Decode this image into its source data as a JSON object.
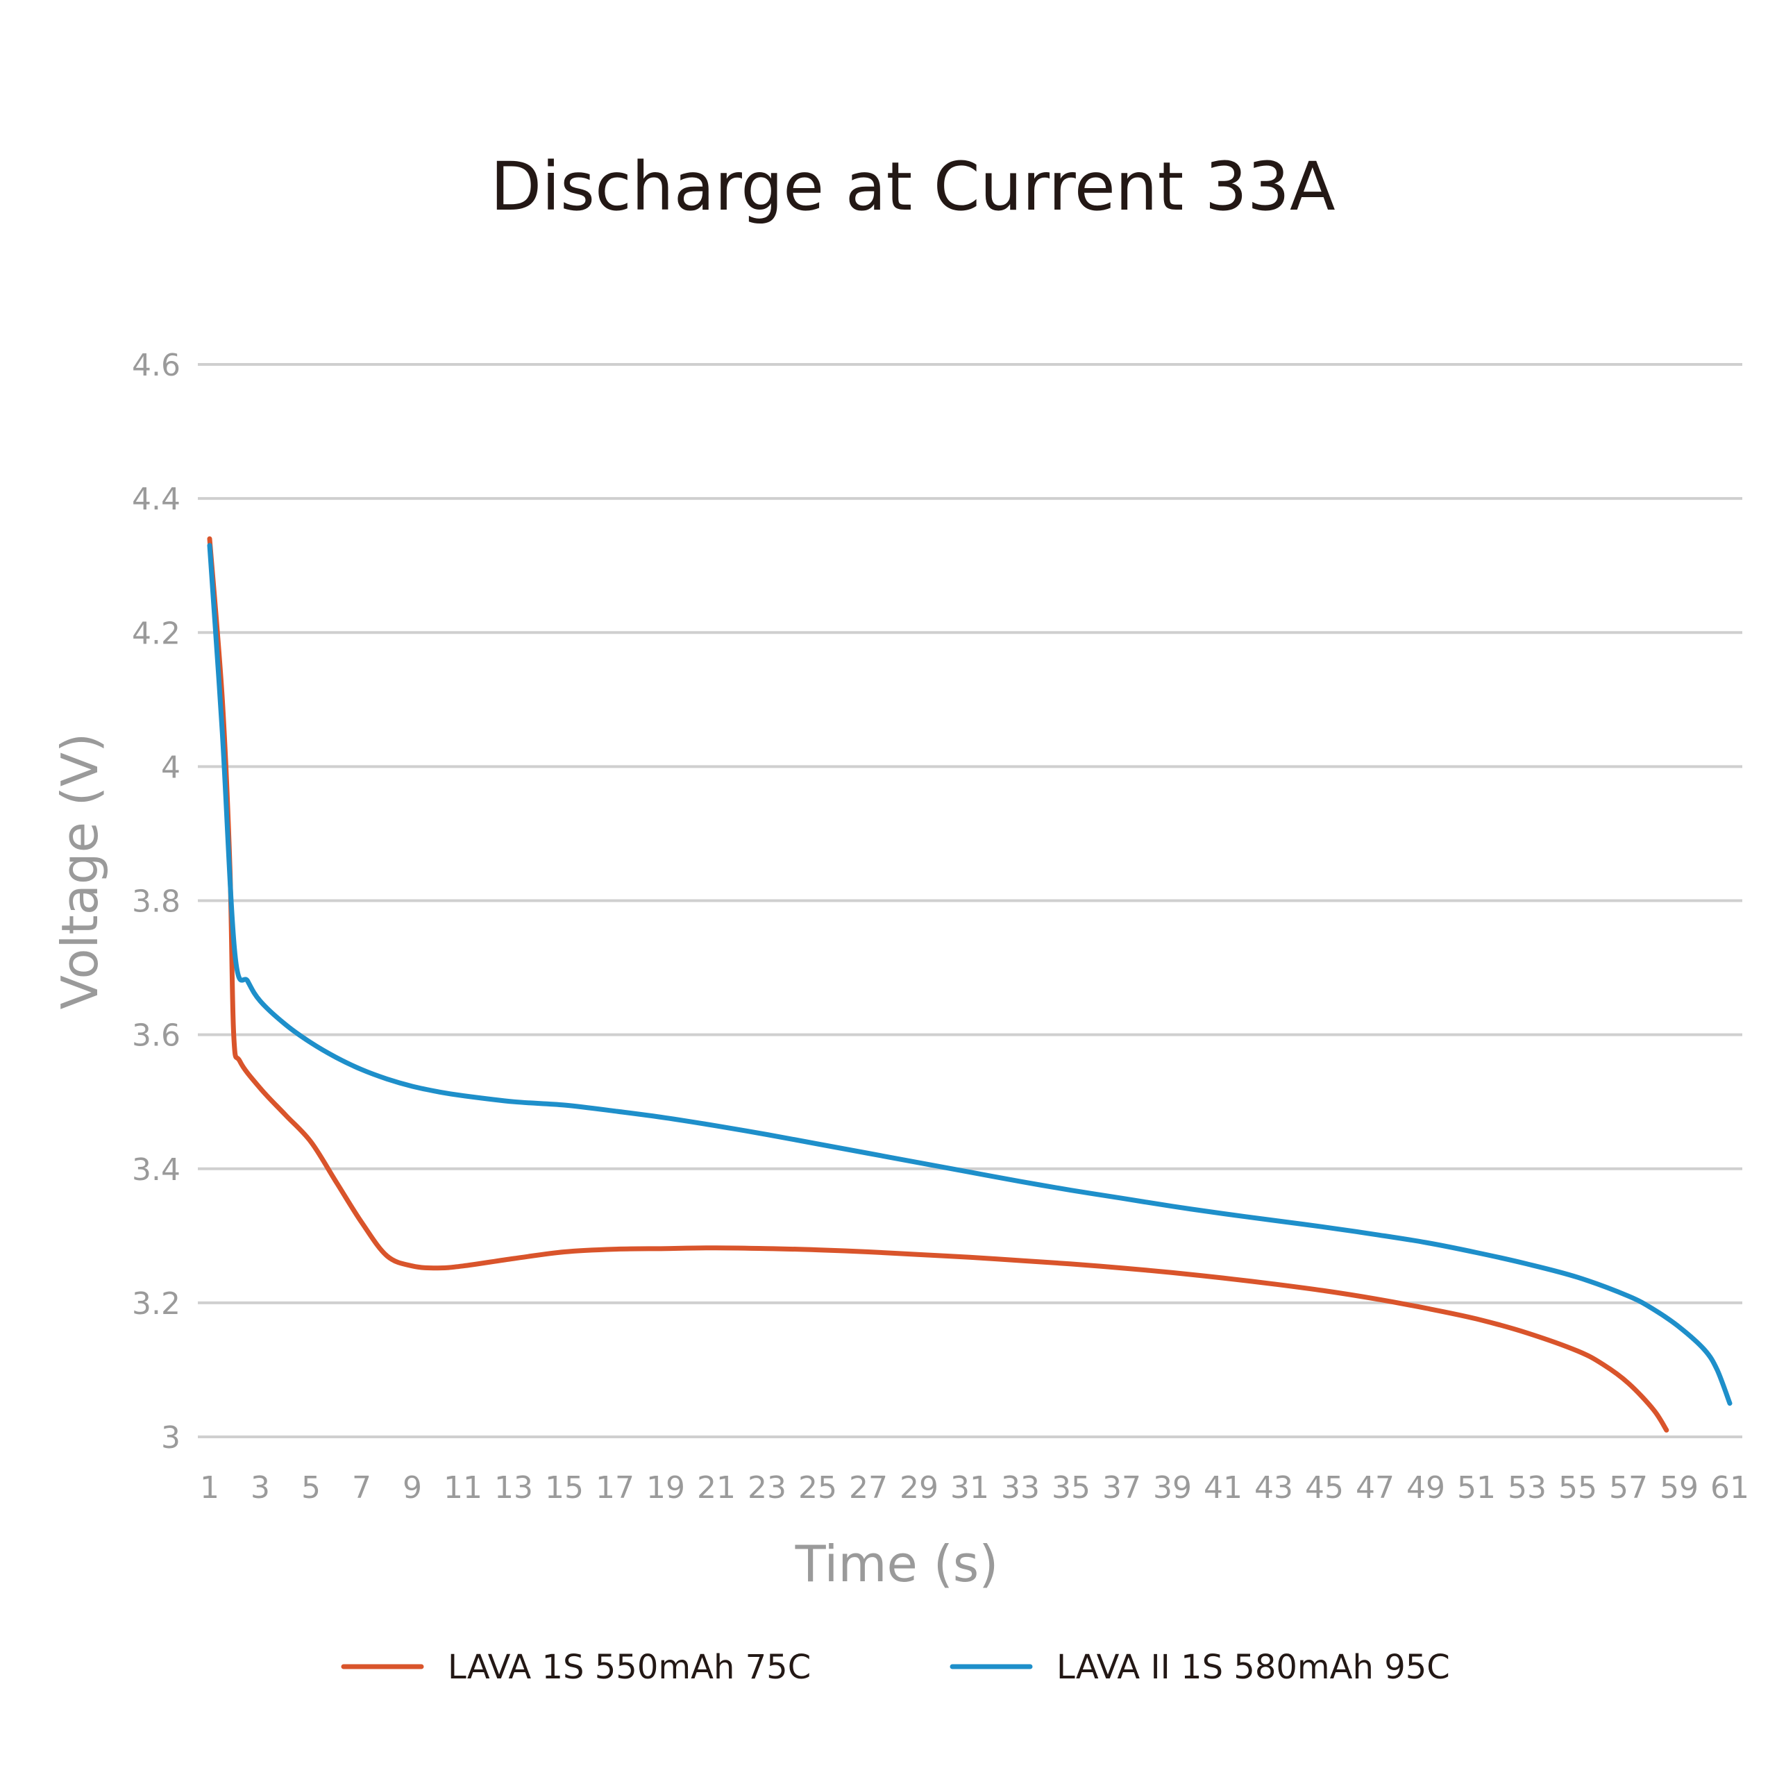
{
  "chart_data": {
    "type": "line",
    "title": "Discharge at Current 33A",
    "xlabel": "Time (s)",
    "ylabel": "Voltage (V)",
    "ylim": [
      3,
      4.6
    ],
    "xlim": [
      1,
      61
    ],
    "y_ticks": [
      "3",
      "3.2",
      "3.4",
      "3.6",
      "3.8",
      "4",
      "4.2",
      "4.4",
      "4.6"
    ],
    "x_ticks": [
      "1",
      "3",
      "5",
      "7",
      "9",
      "11",
      "13",
      "15",
      "17",
      "19",
      "21",
      "23",
      "25",
      "27",
      "29",
      "31",
      "33",
      "35",
      "37",
      "39",
      "41",
      "43",
      "45",
      "47",
      "49",
      "51",
      "53",
      "55",
      "57",
      "59",
      "61"
    ],
    "grid": true,
    "legend_position": "bottom",
    "series": [
      {
        "name": "LAVA 1S 550mAh 75C",
        "color": "#d9542b",
        "points": [
          [
            1,
            4.34
          ],
          [
            1.5,
            4.1
          ],
          [
            1.8,
            3.85
          ],
          [
            1.95,
            3.6
          ],
          [
            2.2,
            3.56
          ],
          [
            3,
            3.52
          ],
          [
            4,
            3.48
          ],
          [
            5,
            3.44
          ],
          [
            6,
            3.38
          ],
          [
            7,
            3.32
          ],
          [
            8,
            3.27
          ],
          [
            9,
            3.255
          ],
          [
            10,
            3.252
          ],
          [
            11,
            3.255
          ],
          [
            13,
            3.266
          ],
          [
            15,
            3.276
          ],
          [
            17,
            3.28
          ],
          [
            19,
            3.281
          ],
          [
            21,
            3.282
          ],
          [
            23,
            3.281
          ],
          [
            25,
            3.279
          ],
          [
            27,
            3.276
          ],
          [
            29,
            3.272
          ],
          [
            31,
            3.268
          ],
          [
            33,
            3.263
          ],
          [
            35,
            3.258
          ],
          [
            37,
            3.252
          ],
          [
            39,
            3.245
          ],
          [
            41,
            3.237
          ],
          [
            43,
            3.228
          ],
          [
            45,
            3.218
          ],
          [
            47,
            3.206
          ],
          [
            49,
            3.192
          ],
          [
            51,
            3.176
          ],
          [
            53,
            3.155
          ],
          [
            55,
            3.128
          ],
          [
            56,
            3.108
          ],
          [
            57,
            3.08
          ],
          [
            58,
            3.04
          ],
          [
            58.5,
            3.01
          ]
        ]
      },
      {
        "name": "LAVA II 1S 580mAh 95C",
        "color": "#1e8fca",
        "points": [
          [
            1,
            4.33
          ],
          [
            1.5,
            4.05
          ],
          [
            2,
            3.72
          ],
          [
            2.5,
            3.68
          ],
          [
            3,
            3.65
          ],
          [
            4,
            3.615
          ],
          [
            5,
            3.588
          ],
          [
            6,
            3.566
          ],
          [
            7,
            3.548
          ],
          [
            8,
            3.534
          ],
          [
            9,
            3.523
          ],
          [
            10,
            3.515
          ],
          [
            11,
            3.509
          ],
          [
            13,
            3.5
          ],
          [
            15,
            3.495
          ],
          [
            17,
            3.486
          ],
          [
            19,
            3.476
          ],
          [
            21,
            3.464
          ],
          [
            23,
            3.451
          ],
          [
            25,
            3.437
          ],
          [
            27,
            3.423
          ],
          [
            29,
            3.409
          ],
          [
            31,
            3.395
          ],
          [
            33,
            3.381
          ],
          [
            35,
            3.368
          ],
          [
            37,
            3.356
          ],
          [
            39,
            3.344
          ],
          [
            41,
            3.333
          ],
          [
            43,
            3.323
          ],
          [
            45,
            3.313
          ],
          [
            47,
            3.302
          ],
          [
            49,
            3.29
          ],
          [
            51,
            3.275
          ],
          [
            53,
            3.258
          ],
          [
            55,
            3.238
          ],
          [
            57,
            3.21
          ],
          [
            58,
            3.19
          ],
          [
            59,
            3.164
          ],
          [
            60,
            3.13
          ],
          [
            60.5,
            3.1
          ],
          [
            61,
            3.05
          ]
        ]
      }
    ]
  }
}
